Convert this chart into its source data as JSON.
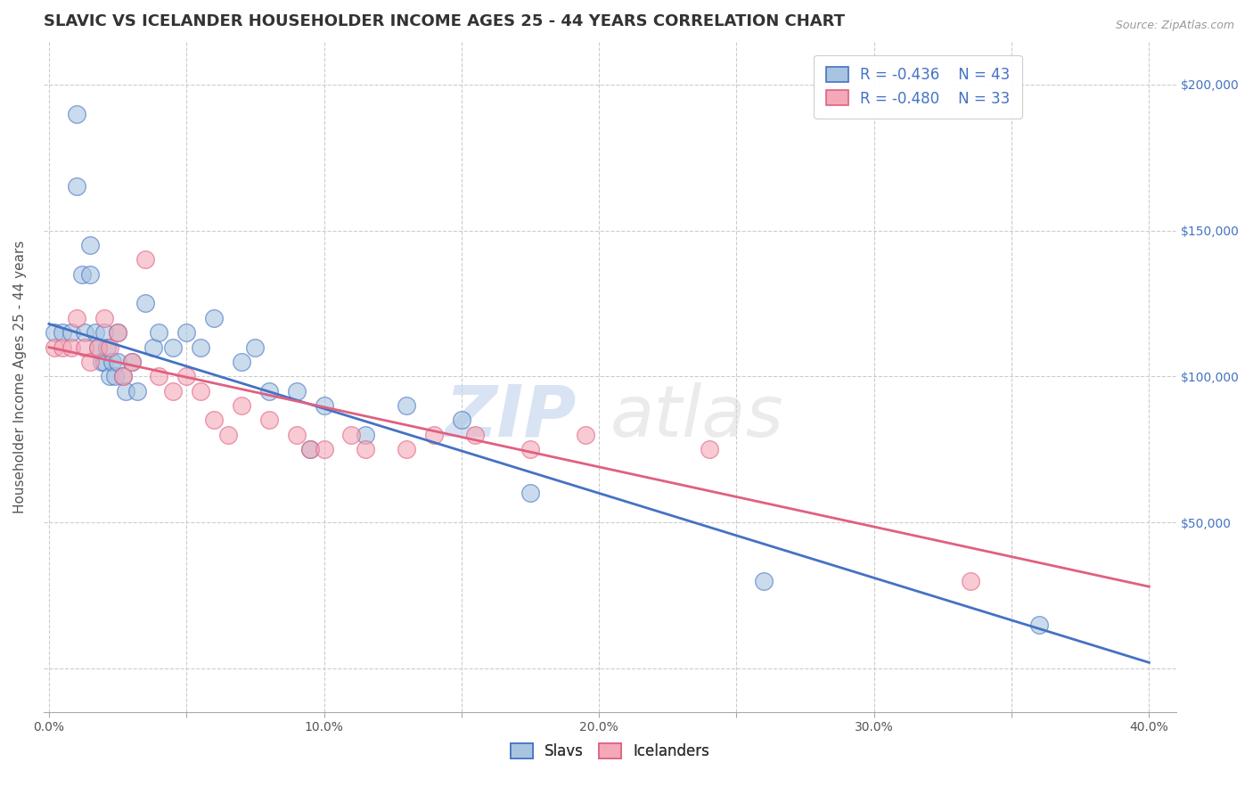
{
  "title": "SLAVIC VS ICELANDER HOUSEHOLDER INCOME AGES 25 - 44 YEARS CORRELATION CHART",
  "source": "Source: ZipAtlas.com",
  "ylabel": "Householder Income Ages 25 - 44 years",
  "xlim": [
    -0.002,
    0.41
  ],
  "ylim": [
    -15000,
    215000
  ],
  "xticks": [
    0.0,
    0.05,
    0.1,
    0.15,
    0.2,
    0.25,
    0.3,
    0.35,
    0.4
  ],
  "xticklabels": [
    "0.0%",
    "",
    "10.0%",
    "",
    "20.0%",
    "",
    "30.0%",
    "",
    "40.0%"
  ],
  "yticks": [
    0,
    50000,
    100000,
    150000,
    200000
  ],
  "right_yticklabels": [
    "",
    "$50,000",
    "$100,000",
    "$150,000",
    "$200,000"
  ],
  "slavs_color": "#a8c4e0",
  "icelanders_color": "#f4a8b8",
  "slavs_line_color": "#4472C4",
  "icelanders_line_color": "#E06080",
  "background_color": "#ffffff",
  "grid_color": "#cccccc",
  "slavs_x": [
    0.002,
    0.005,
    0.008,
    0.01,
    0.01,
    0.012,
    0.013,
    0.015,
    0.015,
    0.017,
    0.018,
    0.019,
    0.02,
    0.02,
    0.021,
    0.022,
    0.023,
    0.024,
    0.025,
    0.025,
    0.027,
    0.028,
    0.03,
    0.032,
    0.035,
    0.038,
    0.04,
    0.045,
    0.05,
    0.055,
    0.06,
    0.07,
    0.075,
    0.08,
    0.09,
    0.095,
    0.1,
    0.115,
    0.13,
    0.15,
    0.175,
    0.26,
    0.36
  ],
  "slavs_y": [
    115000,
    115000,
    115000,
    190000,
    165000,
    135000,
    115000,
    145000,
    135000,
    115000,
    110000,
    105000,
    115000,
    105000,
    110000,
    100000,
    105000,
    100000,
    115000,
    105000,
    100000,
    95000,
    105000,
    95000,
    125000,
    110000,
    115000,
    110000,
    115000,
    110000,
    120000,
    105000,
    110000,
    95000,
    95000,
    75000,
    90000,
    80000,
    90000,
    85000,
    60000,
    30000,
    15000
  ],
  "icelanders_x": [
    0.002,
    0.005,
    0.008,
    0.01,
    0.013,
    0.015,
    0.018,
    0.02,
    0.022,
    0.025,
    0.027,
    0.03,
    0.035,
    0.04,
    0.045,
    0.05,
    0.055,
    0.06,
    0.065,
    0.07,
    0.08,
    0.09,
    0.095,
    0.1,
    0.11,
    0.115,
    0.13,
    0.14,
    0.155,
    0.175,
    0.195,
    0.24,
    0.335
  ],
  "icelanders_y": [
    110000,
    110000,
    110000,
    120000,
    110000,
    105000,
    110000,
    120000,
    110000,
    115000,
    100000,
    105000,
    140000,
    100000,
    95000,
    100000,
    95000,
    85000,
    80000,
    90000,
    85000,
    80000,
    75000,
    75000,
    80000,
    75000,
    75000,
    80000,
    80000,
    75000,
    80000,
    75000,
    30000
  ],
  "slavs_line_x0": 0.0,
  "slavs_line_y0": 118000,
  "slavs_line_x1": 0.4,
  "slavs_line_y1": 2000,
  "icel_line_x0": 0.0,
  "icel_line_y0": 110000,
  "icel_line_x1": 0.4,
  "icel_line_y1": 28000,
  "watermark_zip": "ZIP",
  "watermark_atlas": "atlas",
  "legend_slavs_r": "R = -0.436",
  "legend_slavs_n": "N = 43",
  "legend_icel_r": "R = -0.480",
  "legend_icel_n": "N = 33",
  "title_fontsize": 13,
  "axis_label_fontsize": 11,
  "tick_fontsize": 10
}
